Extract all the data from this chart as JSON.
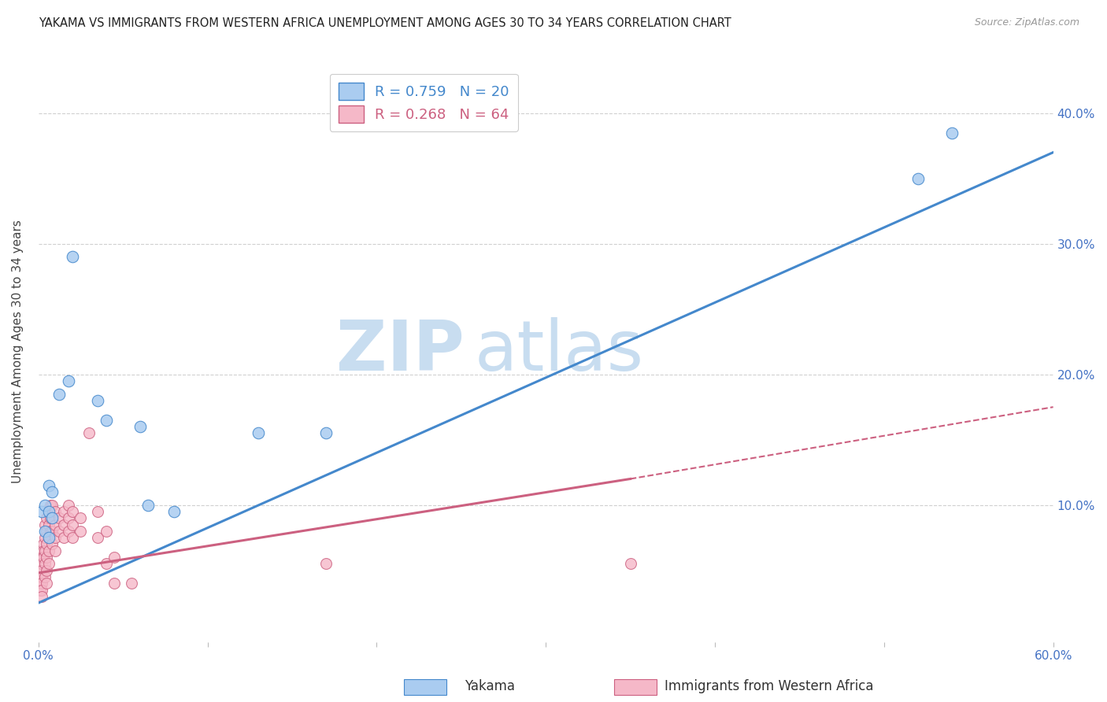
{
  "title": "YAKAMA VS IMMIGRANTS FROM WESTERN AFRICA UNEMPLOYMENT AMONG AGES 30 TO 34 YEARS CORRELATION CHART",
  "source": "Source: ZipAtlas.com",
  "ylabel": "Unemployment Among Ages 30 to 34 years",
  "xlim": [
    0,
    0.6
  ],
  "ylim": [
    -0.005,
    0.44
  ],
  "xticks": [
    0.0,
    0.1,
    0.2,
    0.3,
    0.4,
    0.5,
    0.6
  ],
  "yticks": [
    0.1,
    0.2,
    0.3,
    0.4
  ],
  "background_color": "#ffffff",
  "grid_color": "#d0d0d0",
  "watermark_zip": "ZIP",
  "watermark_atlas": "atlas",
  "watermark_color": "#c8ddf0",
  "blue_label": "Yakama",
  "blue_color": "#aaccf0",
  "blue_R": "0.759",
  "blue_N": "20",
  "blue_line_color": "#4488cc",
  "blue_scatter": [
    [
      0.002,
      0.095
    ],
    [
      0.004,
      0.1
    ],
    [
      0.004,
      0.08
    ],
    [
      0.006,
      0.115
    ],
    [
      0.006,
      0.095
    ],
    [
      0.006,
      0.075
    ],
    [
      0.008,
      0.11
    ],
    [
      0.008,
      0.09
    ],
    [
      0.012,
      0.185
    ],
    [
      0.018,
      0.195
    ],
    [
      0.02,
      0.29
    ],
    [
      0.035,
      0.18
    ],
    [
      0.04,
      0.165
    ],
    [
      0.06,
      0.16
    ],
    [
      0.065,
      0.1
    ],
    [
      0.08,
      0.095
    ],
    [
      0.13,
      0.155
    ],
    [
      0.17,
      0.155
    ],
    [
      0.52,
      0.35
    ],
    [
      0.54,
      0.385
    ]
  ],
  "blue_line": [
    [
      0.0,
      0.025
    ],
    [
      0.6,
      0.37
    ]
  ],
  "pink_label": "Immigrants from Western Africa",
  "pink_color": "#f5b8c8",
  "pink_R": "0.268",
  "pink_N": "64",
  "pink_line_color": "#cc6080",
  "pink_scatter": [
    [
      0.001,
      0.05
    ],
    [
      0.001,
      0.045
    ],
    [
      0.001,
      0.04
    ],
    [
      0.001,
      0.035
    ],
    [
      0.002,
      0.06
    ],
    [
      0.002,
      0.055
    ],
    [
      0.002,
      0.05
    ],
    [
      0.002,
      0.045
    ],
    [
      0.002,
      0.04
    ],
    [
      0.002,
      0.035
    ],
    [
      0.002,
      0.03
    ],
    [
      0.003,
      0.07
    ],
    [
      0.003,
      0.065
    ],
    [
      0.003,
      0.06
    ],
    [
      0.004,
      0.085
    ],
    [
      0.004,
      0.075
    ],
    [
      0.004,
      0.065
    ],
    [
      0.004,
      0.055
    ],
    [
      0.004,
      0.045
    ],
    [
      0.005,
      0.09
    ],
    [
      0.005,
      0.08
    ],
    [
      0.005,
      0.07
    ],
    [
      0.005,
      0.06
    ],
    [
      0.005,
      0.05
    ],
    [
      0.005,
      0.04
    ],
    [
      0.006,
      0.095
    ],
    [
      0.006,
      0.085
    ],
    [
      0.006,
      0.075
    ],
    [
      0.006,
      0.065
    ],
    [
      0.006,
      0.055
    ],
    [
      0.007,
      0.1
    ],
    [
      0.007,
      0.09
    ],
    [
      0.007,
      0.08
    ],
    [
      0.008,
      0.1
    ],
    [
      0.008,
      0.09
    ],
    [
      0.008,
      0.08
    ],
    [
      0.008,
      0.07
    ],
    [
      0.01,
      0.095
    ],
    [
      0.01,
      0.085
    ],
    [
      0.01,
      0.075
    ],
    [
      0.01,
      0.065
    ],
    [
      0.012,
      0.09
    ],
    [
      0.012,
      0.08
    ],
    [
      0.015,
      0.095
    ],
    [
      0.015,
      0.085
    ],
    [
      0.015,
      0.075
    ],
    [
      0.018,
      0.1
    ],
    [
      0.018,
      0.09
    ],
    [
      0.018,
      0.08
    ],
    [
      0.02,
      0.095
    ],
    [
      0.02,
      0.085
    ],
    [
      0.02,
      0.075
    ],
    [
      0.025,
      0.09
    ],
    [
      0.025,
      0.08
    ],
    [
      0.03,
      0.155
    ],
    [
      0.035,
      0.095
    ],
    [
      0.035,
      0.075
    ],
    [
      0.04,
      0.08
    ],
    [
      0.04,
      0.055
    ],
    [
      0.045,
      0.06
    ],
    [
      0.045,
      0.04
    ],
    [
      0.055,
      0.04
    ],
    [
      0.17,
      0.055
    ],
    [
      0.35,
      0.055
    ]
  ],
  "pink_line_solid": [
    [
      0.0,
      0.048
    ],
    [
      0.35,
      0.12
    ]
  ],
  "pink_line_dashed": [
    [
      0.35,
      0.12
    ],
    [
      0.6,
      0.175
    ]
  ]
}
